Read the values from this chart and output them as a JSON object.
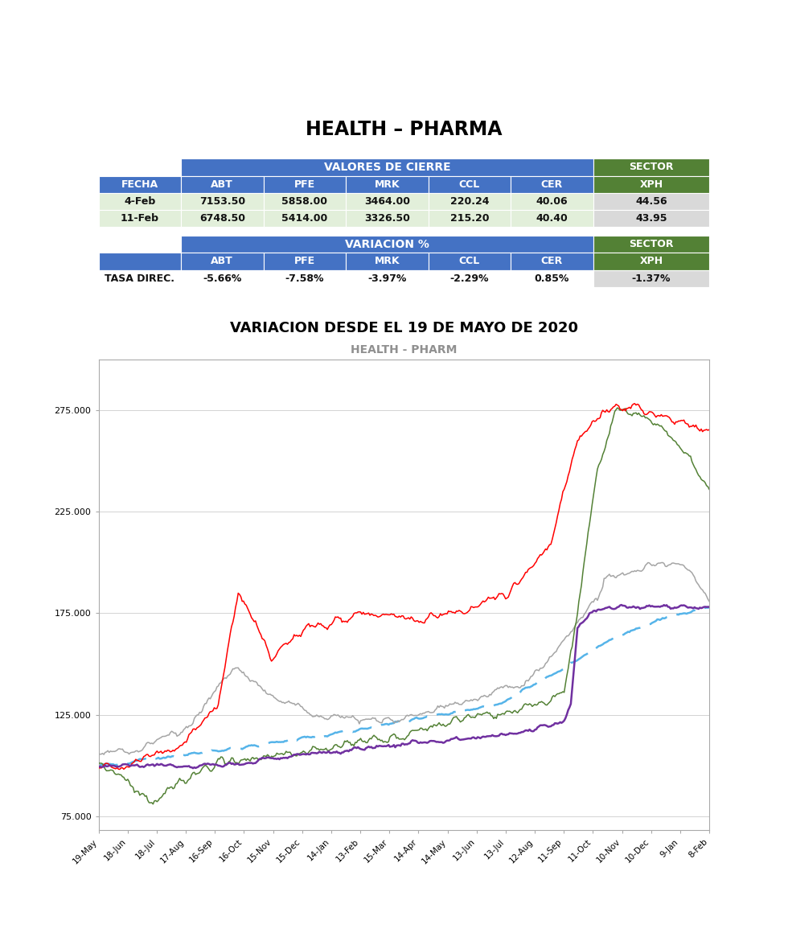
{
  "title": "HEALTH – PHARMA",
  "table1_header_row1_label": "VALORES DE CIERRE",
  "table1_header_row1_sector": "SECTOR",
  "table1_header_row2": [
    "FECHA",
    "ABT",
    "PFE",
    "MRK",
    "CCL",
    "CER",
    "XPH"
  ],
  "table1_data": [
    [
      "4-Feb",
      "7153.50",
      "5858.00",
      "3464.00",
      "220.24",
      "40.06",
      "44.56"
    ],
    [
      "11-Feb",
      "6748.50",
      "5414.00",
      "3326.50",
      "215.20",
      "40.40",
      "43.95"
    ]
  ],
  "table2_header_row1_label": "VARIACION %",
  "table2_header_row1_sector": "SECTOR",
  "table2_header_row2": [
    "",
    "ABT",
    "PFE",
    "MRK",
    "CCL",
    "CER",
    "XPH"
  ],
  "table2_data": [
    [
      "TASA DIREC.",
      "-5.66%",
      "-7.58%",
      "-3.97%",
      "-2.29%",
      "0.85%",
      "-1.37%"
    ]
  ],
  "chart_title": "HEALTH - PHARM",
  "chart_subtitle": "VARIACION DESDE EL 19 DE MAYO DE 2020",
  "blue_color": "#4472C4",
  "green_color": "#538135",
  "light_green_bg": "#E2EFDA",
  "light_gray_bg": "#D9D9D9",
  "white": "#FFFFFF",
  "ytick_labels": [
    "75.000",
    "125.000",
    "175.000",
    "225.000",
    "275.000"
  ],
  "ytick_vals": [
    75,
    125,
    175,
    225,
    275
  ],
  "xtick_labels": [
    "19-May",
    "18-Jun",
    "18-Jul",
    "17-Aug",
    "16-Sep",
    "16-Oct",
    "15-Nov",
    "15-Dec",
    "14-Jan",
    "13-Feb",
    "15-Mar",
    "14-Apr",
    "14-May",
    "13-Jun",
    "13-Jul",
    "12-Aug",
    "11-Sep",
    "11-Oct",
    "10-Nov",
    "10-Dec",
    "9-Jan",
    "8-Feb"
  ],
  "line_colors": {
    "ABT": "#FF0000",
    "PFE": "#538135",
    "MRK": "#A5A5A5",
    "CCL": "#7030A0",
    "CER": "#56B4E9"
  },
  "col_widths": [
    0.135,
    0.135,
    0.135,
    0.135,
    0.135,
    0.135,
    0.19
  ],
  "n_points": 460
}
